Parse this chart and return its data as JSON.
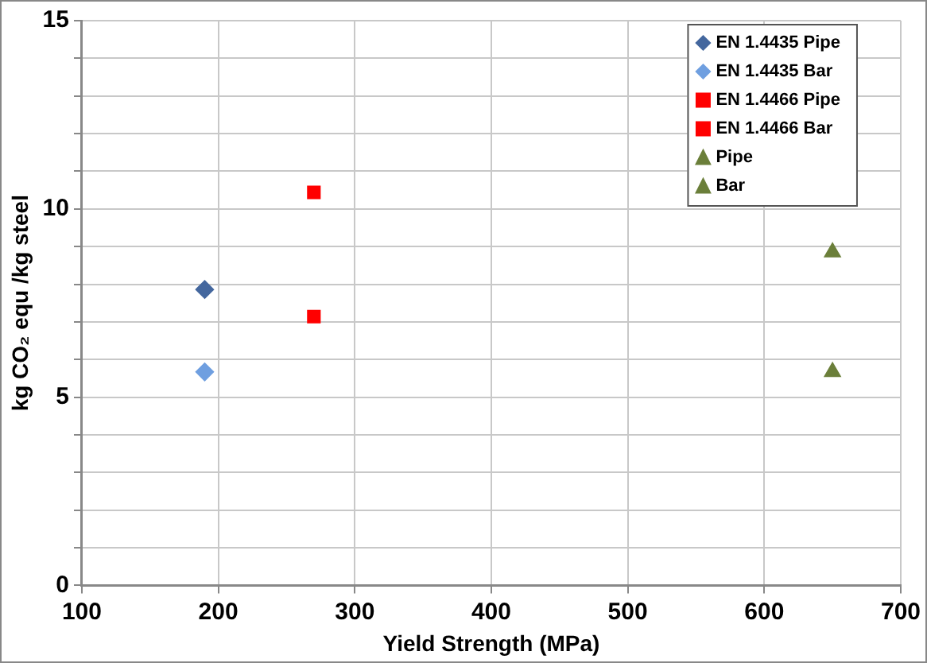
{
  "chart_data": {
    "type": "scatter",
    "xlabel": "Yield Strength (MPa)",
    "ylabel": "kg CO₂ equ /kg steel",
    "series": [
      {
        "name": "EN 1.4435 Pipe",
        "color": "#44679e",
        "marker": "diamond",
        "x": [
          190
        ],
        "values": [
          7.86
        ]
      },
      {
        "name": "EN 1.4435 Bar",
        "color": "#6f9fe0",
        "marker": "diamond",
        "x": [
          190
        ],
        "values": [
          5.67
        ]
      },
      {
        "name": "EN 1.4466 Pipe",
        "color": "#ff0000",
        "marker": "square",
        "x": [
          270
        ],
        "values": [
          10.44
        ]
      },
      {
        "name": "EN 1.4466 Bar",
        "color": "#ff0000",
        "marker": "square",
        "x": [
          270
        ],
        "values": [
          7.14
        ]
      },
      {
        "name": "Pipe",
        "color": "#6b7f3a",
        "marker": "triangle",
        "x": [
          650
        ],
        "values": [
          8.85
        ]
      },
      {
        "name": "Bar",
        "color": "#6b7f3a",
        "marker": "triangle",
        "x": [
          650
        ],
        "values": [
          5.67
        ]
      }
    ],
    "xlim": [
      100,
      700
    ],
    "xticks": [
      100,
      200,
      300,
      400,
      500,
      600,
      700
    ],
    "ylim": [
      0,
      15
    ],
    "yticks": [
      0,
      {
        "value": 1,
        "label": null
      },
      {
        "value": 2,
        "label": null
      },
      {
        "value": 3,
        "label": null
      },
      {
        "value": 4,
        "label": null
      },
      5,
      {
        "value": 6,
        "label": null
      },
      {
        "value": 7,
        "label": null
      },
      {
        "value": 8,
        "label": null
      },
      {
        "value": 9,
        "label": null
      },
      10,
      {
        "value": 11,
        "label": null
      },
      {
        "value": 12,
        "label": null
      },
      {
        "value": 13,
        "label": null
      },
      {
        "value": 14,
        "label": null
      },
      15
    ],
    "grid": true,
    "legend": "top right"
  }
}
